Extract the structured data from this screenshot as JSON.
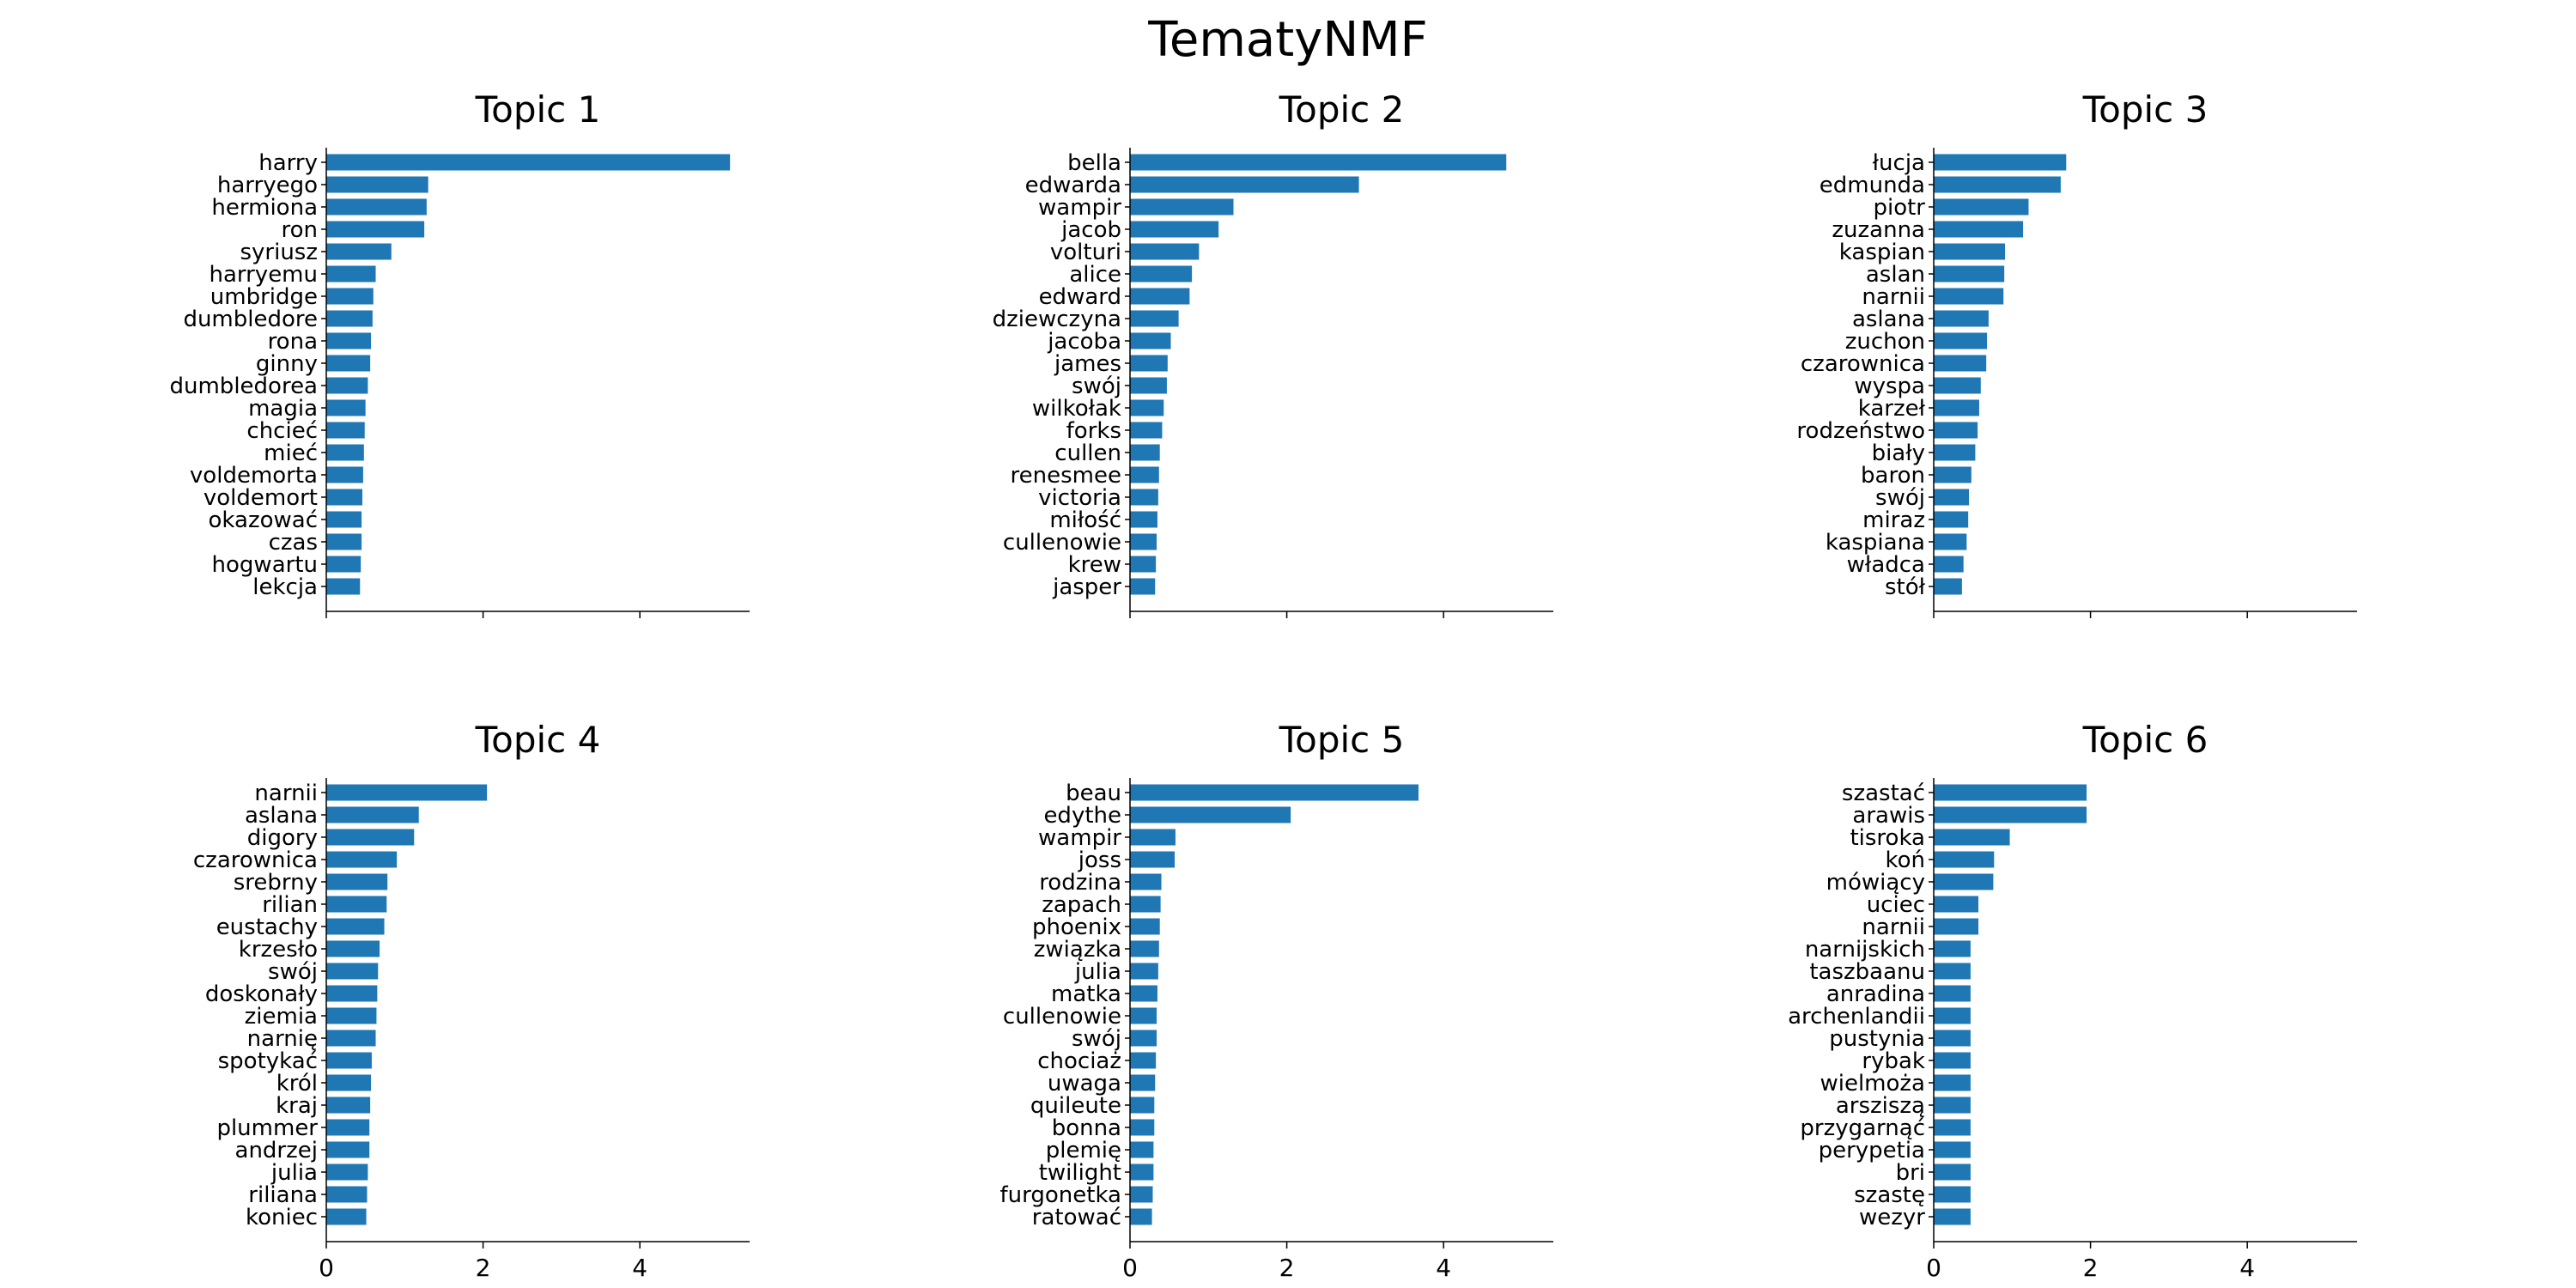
{
  "chart_data": [
    {
      "type": "bar",
      "orientation": "horizontal",
      "title": "Topic 1",
      "categories": [
        "harry",
        "harryego",
        "hermiona",
        "ron",
        "syriusz",
        "harryemu",
        "umbridge",
        "dumbledore",
        "rona",
        "ginny",
        "dumbledorea",
        "magia",
        "chcieć",
        "mieć",
        "voldemorta",
        "voldemort",
        "okazować",
        "czas",
        "hogwartu",
        "lekcja"
      ],
      "values": [
        5.15,
        1.3,
        1.28,
        1.25,
        0.83,
        0.63,
        0.6,
        0.59,
        0.57,
        0.56,
        0.53,
        0.5,
        0.49,
        0.48,
        0.47,
        0.46,
        0.45,
        0.45,
        0.44,
        0.43
      ],
      "color": "#1f77b4",
      "xlim": [
        0,
        5.4
      ],
      "xticks": [
        0,
        2,
        4
      ],
      "show_tick_labels": false
    },
    {
      "type": "bar",
      "orientation": "horizontal",
      "title": "Topic 2",
      "categories": [
        "bella",
        "edwarda",
        "wampir",
        "jacob",
        "volturi",
        "alice",
        "edward",
        "dziewczyna",
        "jacoba",
        "james",
        "swój",
        "wilkołak",
        "forks",
        "cullen",
        "renesmee",
        "victoria",
        "miłość",
        "cullenowie",
        "krew",
        "jasper"
      ],
      "values": [
        4.8,
        2.92,
        1.32,
        1.13,
        0.88,
        0.79,
        0.76,
        0.62,
        0.52,
        0.48,
        0.47,
        0.43,
        0.41,
        0.38,
        0.37,
        0.36,
        0.35,
        0.34,
        0.33,
        0.32
      ],
      "color": "#1f77b4",
      "xlim": [
        0,
        5.4
      ],
      "xticks": [
        0,
        2,
        4
      ],
      "show_tick_labels": false
    },
    {
      "type": "bar",
      "orientation": "horizontal",
      "title": "Topic 3",
      "categories": [
        "łucja",
        "edmunda",
        "piotr",
        "zuzanna",
        "kaspian",
        "aslan",
        "narnii",
        "aslana",
        "zuchon",
        "czarownica",
        "wyspa",
        "karzeł",
        "rodzeństwo",
        "biały",
        "baron",
        "swój",
        "miraz",
        "kaspiana",
        "władca",
        "stół"
      ],
      "values": [
        1.69,
        1.62,
        1.21,
        1.14,
        0.91,
        0.9,
        0.89,
        0.7,
        0.68,
        0.67,
        0.6,
        0.58,
        0.56,
        0.53,
        0.48,
        0.45,
        0.44,
        0.42,
        0.38,
        0.36
      ],
      "color": "#1f77b4",
      "xlim": [
        0,
        5.4
      ],
      "xticks": [
        0,
        2,
        4
      ],
      "show_tick_labels": false
    },
    {
      "type": "bar",
      "orientation": "horizontal",
      "title": "Topic 4",
      "categories": [
        "narnii",
        "aslana",
        "digory",
        "czarownica",
        "srebrny",
        "rilian",
        "eustachy",
        "krzesło",
        "swój",
        "doskonały",
        "ziemia",
        "narnię",
        "spotykać",
        "król",
        "kraj",
        "plummer",
        "andrzej",
        "julia",
        "riliana",
        "koniec"
      ],
      "values": [
        2.05,
        1.18,
        1.12,
        0.9,
        0.78,
        0.77,
        0.74,
        0.68,
        0.66,
        0.65,
        0.64,
        0.63,
        0.58,
        0.57,
        0.56,
        0.55,
        0.55,
        0.53,
        0.52,
        0.51
      ],
      "color": "#1f77b4",
      "xlim": [
        0,
        5.4
      ],
      "xticks": [
        0,
        2,
        4
      ],
      "show_tick_labels": true
    },
    {
      "type": "bar",
      "orientation": "horizontal",
      "title": "Topic 5",
      "categories": [
        "beau",
        "edythe",
        "wampir",
        "joss",
        "rodzina",
        "zapach",
        "phoenix",
        "związka",
        "julia",
        "matka",
        "cullenowie",
        "swój",
        "chociaż",
        "uwaga",
        "quileute",
        "bonna",
        "plemię",
        "twilight",
        "furgonetka",
        "ratować"
      ],
      "values": [
        3.68,
        2.05,
        0.58,
        0.57,
        0.4,
        0.39,
        0.38,
        0.37,
        0.36,
        0.35,
        0.34,
        0.34,
        0.33,
        0.32,
        0.31,
        0.31,
        0.3,
        0.3,
        0.29,
        0.28
      ],
      "color": "#1f77b4",
      "xlim": [
        0,
        5.4
      ],
      "xticks": [
        0,
        2,
        4
      ],
      "show_tick_labels": true
    },
    {
      "type": "bar",
      "orientation": "horizontal",
      "title": "Topic 6",
      "categories": [
        "szastać",
        "arawis",
        "tisroka",
        "koń",
        "mówiący",
        "uciec",
        "narnii",
        "narnijskich",
        "taszbaanu",
        "anradina",
        "archenlandii",
        "pustynia",
        "rybak",
        "wielmoża",
        "arsziszą",
        "przygarnąć",
        "perypetia",
        "bri",
        "szastę",
        "wezyr"
      ],
      "values": [
        1.95,
        1.95,
        0.97,
        0.77,
        0.76,
        0.57,
        0.57,
        0.47,
        0.47,
        0.47,
        0.47,
        0.47,
        0.47,
        0.47,
        0.47,
        0.47,
        0.47,
        0.47,
        0.47,
        0.47
      ],
      "color": "#1f77b4",
      "xlim": [
        0,
        5.4
      ],
      "xticks": [
        0,
        2,
        4
      ],
      "show_tick_labels": true
    }
  ],
  "figure": {
    "suptitle": "TematyNMF"
  }
}
